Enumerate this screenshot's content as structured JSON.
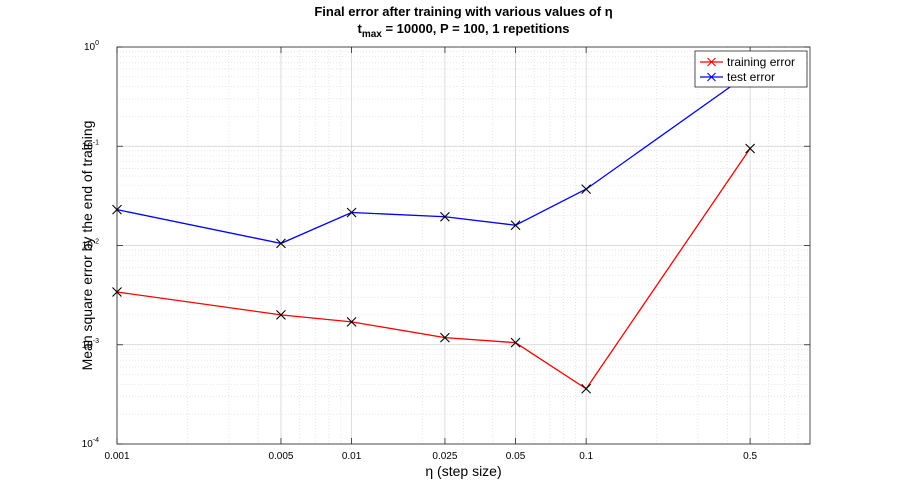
{
  "chart_data": {
    "type": "line",
    "title_line1": "Final error after training with various values of η",
    "title_line2_prefix": "t",
    "title_line2_subscript": "max",
    "title_line2_suffix": " = 10000, P = 100, 1 repetitions",
    "xlabel": "η (step size)",
    "ylabel": "Mean square error by the end of training",
    "x_scale": "log",
    "y_scale": "log",
    "xlim": [
      0.001,
      0.9
    ],
    "ylim": [
      0.0001,
      1
    ],
    "x_ticks": [
      0.001,
      0.005,
      0.01,
      0.025,
      0.05,
      0.1,
      0.5
    ],
    "x_tick_labels": [
      "0.001",
      "0.005",
      "0.01",
      "0.025",
      "0.05",
      "0.1",
      "0.5"
    ],
    "y_ticks": [
      {
        "value": 0.0001,
        "base": "10",
        "exp": "-4"
      },
      {
        "value": 0.001,
        "base": "10",
        "exp": "-3"
      },
      {
        "value": 0.01,
        "base": "10",
        "exp": "-2"
      },
      {
        "value": 0.1,
        "base": "10",
        "exp": "-1"
      },
      {
        "value": 1,
        "base": "10",
        "exp": "0"
      }
    ],
    "grid": true,
    "minor_grid": true,
    "legend_position": "top-right",
    "x": [
      0.001,
      0.005,
      0.01,
      0.025,
      0.05,
      0.1,
      0.5
    ],
    "series": [
      {
        "name": "training error",
        "color": "#ff0000",
        "marker": "x",
        "values": [
          0.0034,
          0.002,
          0.0017,
          0.00118,
          0.00105,
          0.00036,
          0.095
        ]
      },
      {
        "name": "test error",
        "color": "#0000ff",
        "marker": "x",
        "values": [
          0.023,
          0.0105,
          0.0215,
          0.0195,
          0.016,
          0.037,
          0.55
        ]
      }
    ]
  }
}
